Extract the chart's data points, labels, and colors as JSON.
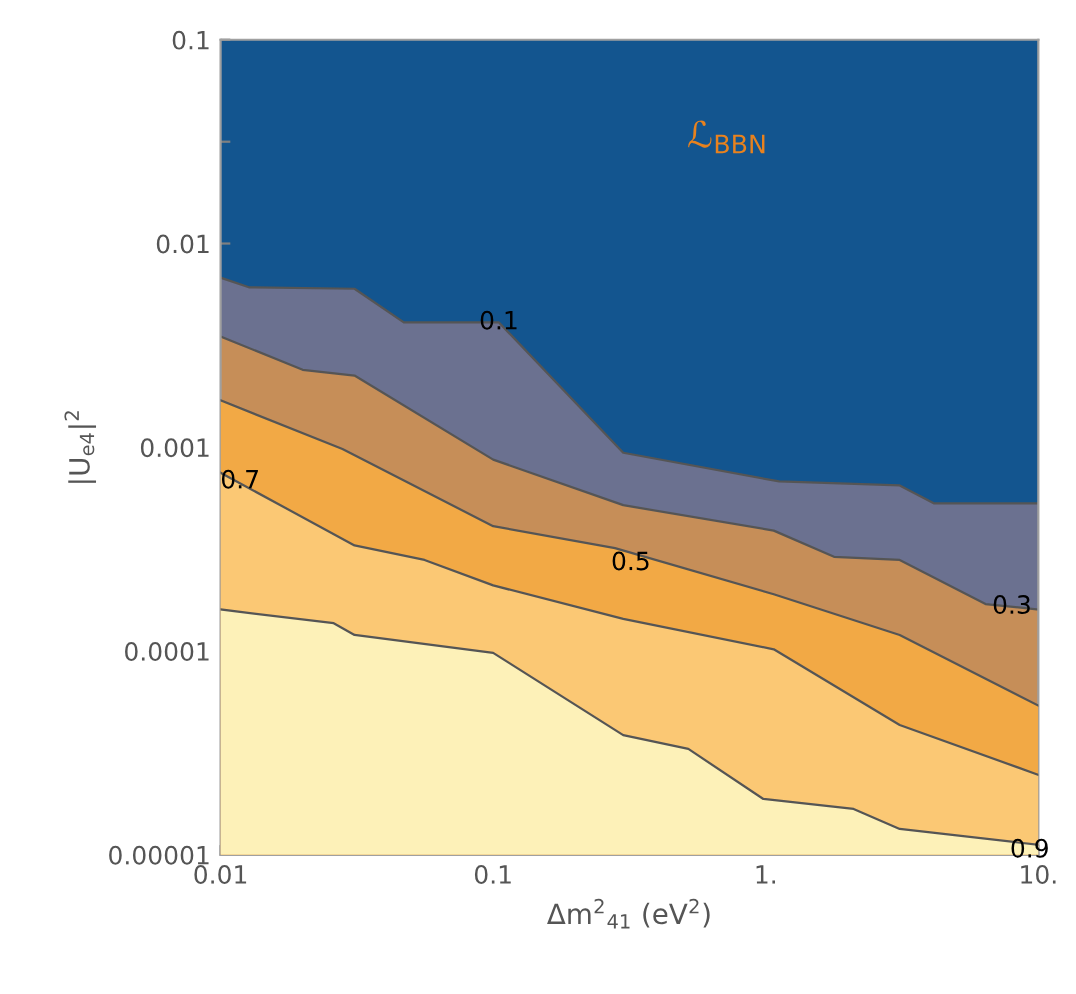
{
  "chart_data": {
    "type": "area",
    "xlabel": "Δm$^{2}$$_{41}$ (eV$^{2}$)",
    "ylabel": "|U$_{e4}$|$^{2}$",
    "log": "xy",
    "grid": false,
    "xlim": [
      0.01,
      10
    ],
    "ylim": [
      1e-05,
      0.1
    ],
    "xticks": [
      {
        "value": 0.01,
        "label": "0.01"
      },
      {
        "value": 0.0316,
        "label": null
      },
      {
        "value": 0.1,
        "label": "0.1"
      },
      {
        "value": 0.316,
        "label": null
      },
      {
        "value": 1,
        "label": "1."
      },
      {
        "value": 3.16,
        "label": null
      },
      {
        "value": 10,
        "label": "10."
      }
    ],
    "yticks": [
      {
        "value": 1e-05,
        "label": "0.00001"
      },
      {
        "value": 3.16e-05,
        "label": null
      },
      {
        "value": 0.0001,
        "label": "0.0001"
      },
      {
        "value": 0.000316,
        "label": null
      },
      {
        "value": 0.001,
        "label": "0.001"
      },
      {
        "value": 0.00316,
        "label": null
      },
      {
        "value": 0.01,
        "label": "0.01"
      },
      {
        "value": 0.0316,
        "label": null
      },
      {
        "value": 0.1,
        "label": "0.1"
      }
    ],
    "bands": [
      {
        "axis": "y",
        "from": 1e-05,
        "to": 0.1,
        "color": "#13558f"
      }
    ],
    "series": [
      {
        "color": "#6b7190",
        "x": [
          0.01,
          0.0127,
          0.031,
          0.047,
          0.105,
          0.3,
          1.12,
          3.1,
          4.15,
          10
        ],
        "values": [
          0.0068,
          0.0061,
          0.006,
          0.0041,
          0.0041,
          0.00094,
          0.00068,
          0.00065,
          0.00053,
          0.00053
        ]
      },
      {
        "color": "#c68e58",
        "x": [
          0.01,
          0.02,
          0.031,
          0.1,
          0.3,
          1.07,
          1.78,
          3.1,
          6.4,
          10
        ],
        "values": [
          0.0035,
          0.0024,
          0.00225,
          0.00087,
          0.00052,
          0.00039,
          0.00029,
          0.00028,
          0.00017,
          0.00016
        ]
      },
      {
        "color": "#f2a945",
        "x": [
          0.01,
          0.028,
          0.1,
          0.28,
          1.07,
          3.1,
          10
        ],
        "values": [
          0.0017,
          0.00098,
          0.00041,
          0.00032,
          0.00019,
          0.00012,
          5.4e-05
        ]
      },
      {
        "color": "#fbc874",
        "x": [
          0.01,
          0.031,
          0.056,
          0.1,
          0.3,
          1.07,
          3.1,
          10
        ],
        "values": [
          0.00075,
          0.00033,
          0.00028,
          0.00021,
          0.000144,
          0.000102,
          4.34e-05,
          2.47e-05
        ]
      },
      {
        "color": "#fdf1b8",
        "x": [
          0.01,
          0.026,
          0.031,
          0.1,
          0.3,
          0.52,
          0.98,
          2.1,
          3.1,
          10
        ],
        "values": [
          0.00016,
          0.000137,
          0.00012,
          9.8e-05,
          3.87e-05,
          3.31e-05,
          1.88e-05,
          1.68e-05,
          1.34e-05,
          1.12e-05
        ]
      }
    ],
    "annotations": [
      "ℒ$_{BBN}$",
      {
        "text": "0.1",
        "x": 0.105,
        "y": 0.0041
      },
      {
        "text": "0.3",
        "x": 8,
        "y": 0.000165
      },
      {
        "text": "0.5",
        "x": 0.32,
        "y": 0.00027
      },
      {
        "text": "0.7",
        "x": 0.0118,
        "y": 0.00068
      },
      {
        "text": "0.9",
        "x": 9.3,
        "y": 1.05e-05
      }
    ]
  }
}
